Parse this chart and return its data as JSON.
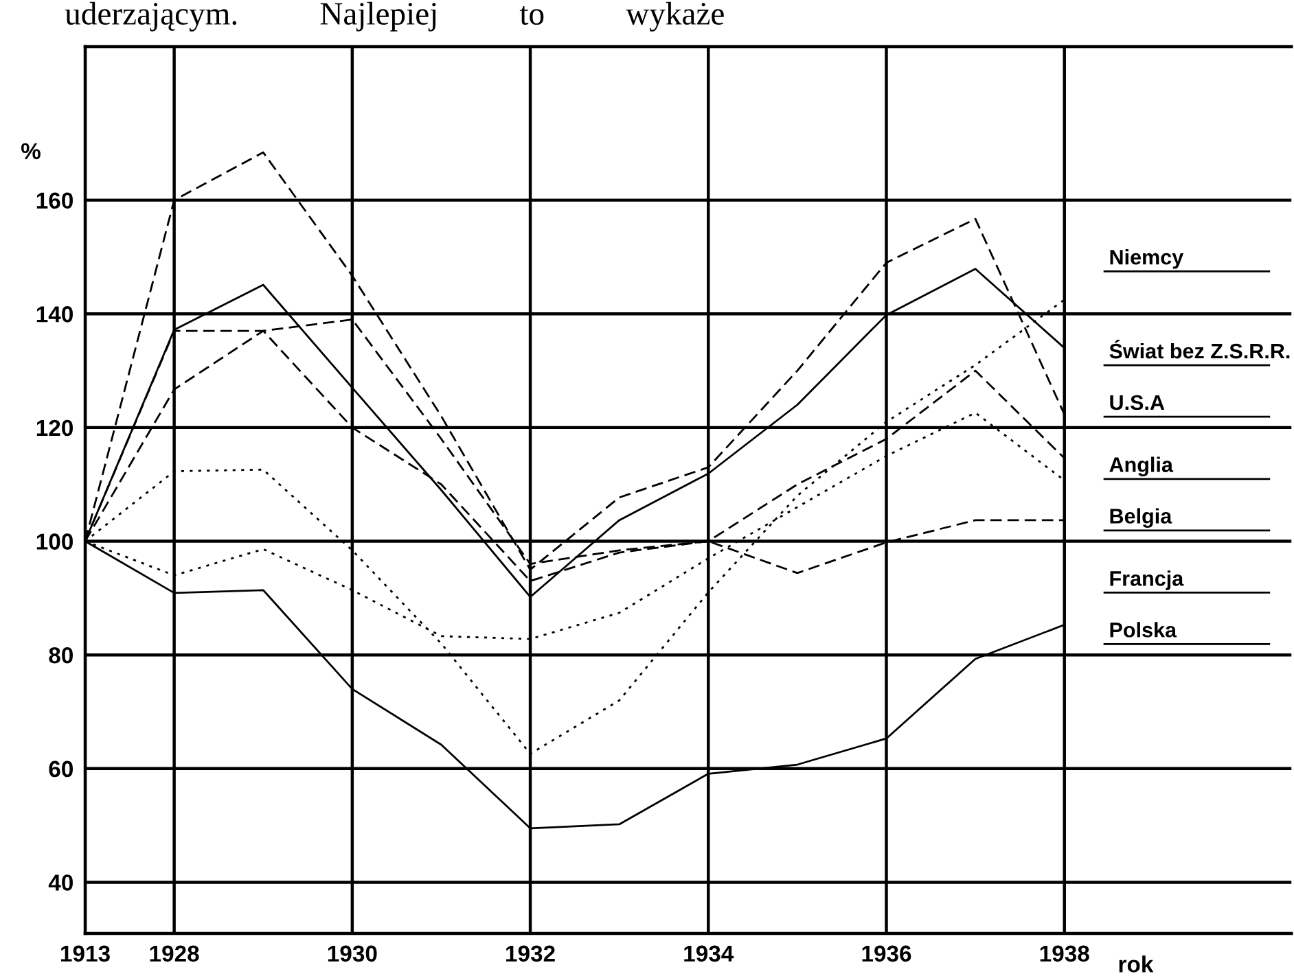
{
  "chart_data": {
    "type": "line",
    "annotations": [
      "uderzającym.          Najlepiej          to          wykaże"
    ],
    "xlabel": "rok",
    "ylabel": "%",
    "categories": [
      "1913",
      "1928",
      null,
      "1930",
      null,
      "1932",
      null,
      "1934",
      null,
      "1936",
      null,
      "1938"
    ],
    "ylim": [
      31,
      187
    ],
    "yticks": [
      40,
      60,
      80,
      100,
      120,
      140,
      160
    ],
    "grid": true,
    "legend": false,
    "marker": "none",
    "series": [
      {
        "name": "Niemcy",
        "color": "#000000",
        "line_style": "dotted",
        "values": [
          100,
          112.3,
          112.6,
          98.4,
          82,
          62.6,
          72,
          91,
          108,
          121,
          131,
          142.5
        ]
      },
      {
        "name": "Świat bez Z.S.R.R.",
        "color": "#000000",
        "line_style": "solid",
        "values": [
          100,
          137.2,
          145.1,
          127,
          109,
          90.2,
          103.7,
          111.9,
          124,
          139.8,
          147.9,
          134
        ]
      },
      {
        "name": "U.S.A",
        "color": "#000000",
        "line_style": "dashed",
        "values": [
          100,
          160,
          168.4,
          146.7,
          122,
          95,
          107.7,
          113,
          130,
          149,
          156.7,
          122.3
        ]
      },
      {
        "name": "Anglia",
        "color": "#000000",
        "line_style": "dashed",
        "values": [
          100,
          126.7,
          137,
          120,
          110,
          93,
          98,
          100,
          110,
          118,
          130,
          114.6
        ]
      },
      {
        "name": "Belgia",
        "color": "#000000",
        "line_style": "dotted",
        "values": [
          100,
          94,
          98.6,
          91.4,
          83.3,
          82.8,
          87.4,
          97,
          106,
          115,
          122.6,
          110.7
        ]
      },
      {
        "name": "Francja",
        "color": "#000000",
        "line_style": "dashed",
        "values": [
          100,
          137,
          137,
          139,
          118,
          96,
          98.4,
          100,
          94.4,
          99.8,
          103.7,
          103.7
        ]
      },
      {
        "name": "Polska",
        "color": "#000000",
        "line_style": "solid",
        "values": [
          100,
          90.9,
          91.4,
          74,
          64.2,
          49.5,
          50.2,
          59.1,
          60.7,
          65.3,
          79.3,
          85.3
        ]
      }
    ]
  }
}
